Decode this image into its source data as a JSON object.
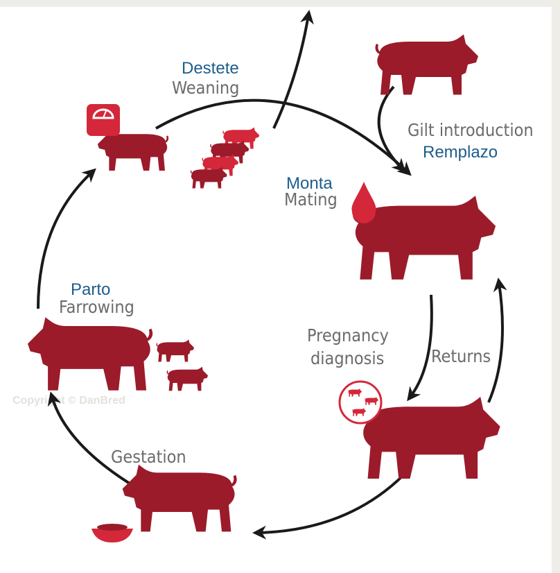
{
  "stages": [
    {
      "label": "Weaning",
      "translation": "Destete"
    },
    {
      "label": "Gilt introduction",
      "translation": "Remplazo"
    },
    {
      "label": "Mating",
      "translation": "Monta"
    },
    {
      "label": [
        "Pregnancy",
        "diagnosis"
      ]
    },
    {
      "label": "Returns"
    },
    {
      "label": "Gestation"
    },
    {
      "label": "Farrowing",
      "translation": "Parto"
    }
  ],
  "watermark": "Copyright © DanBred"
}
